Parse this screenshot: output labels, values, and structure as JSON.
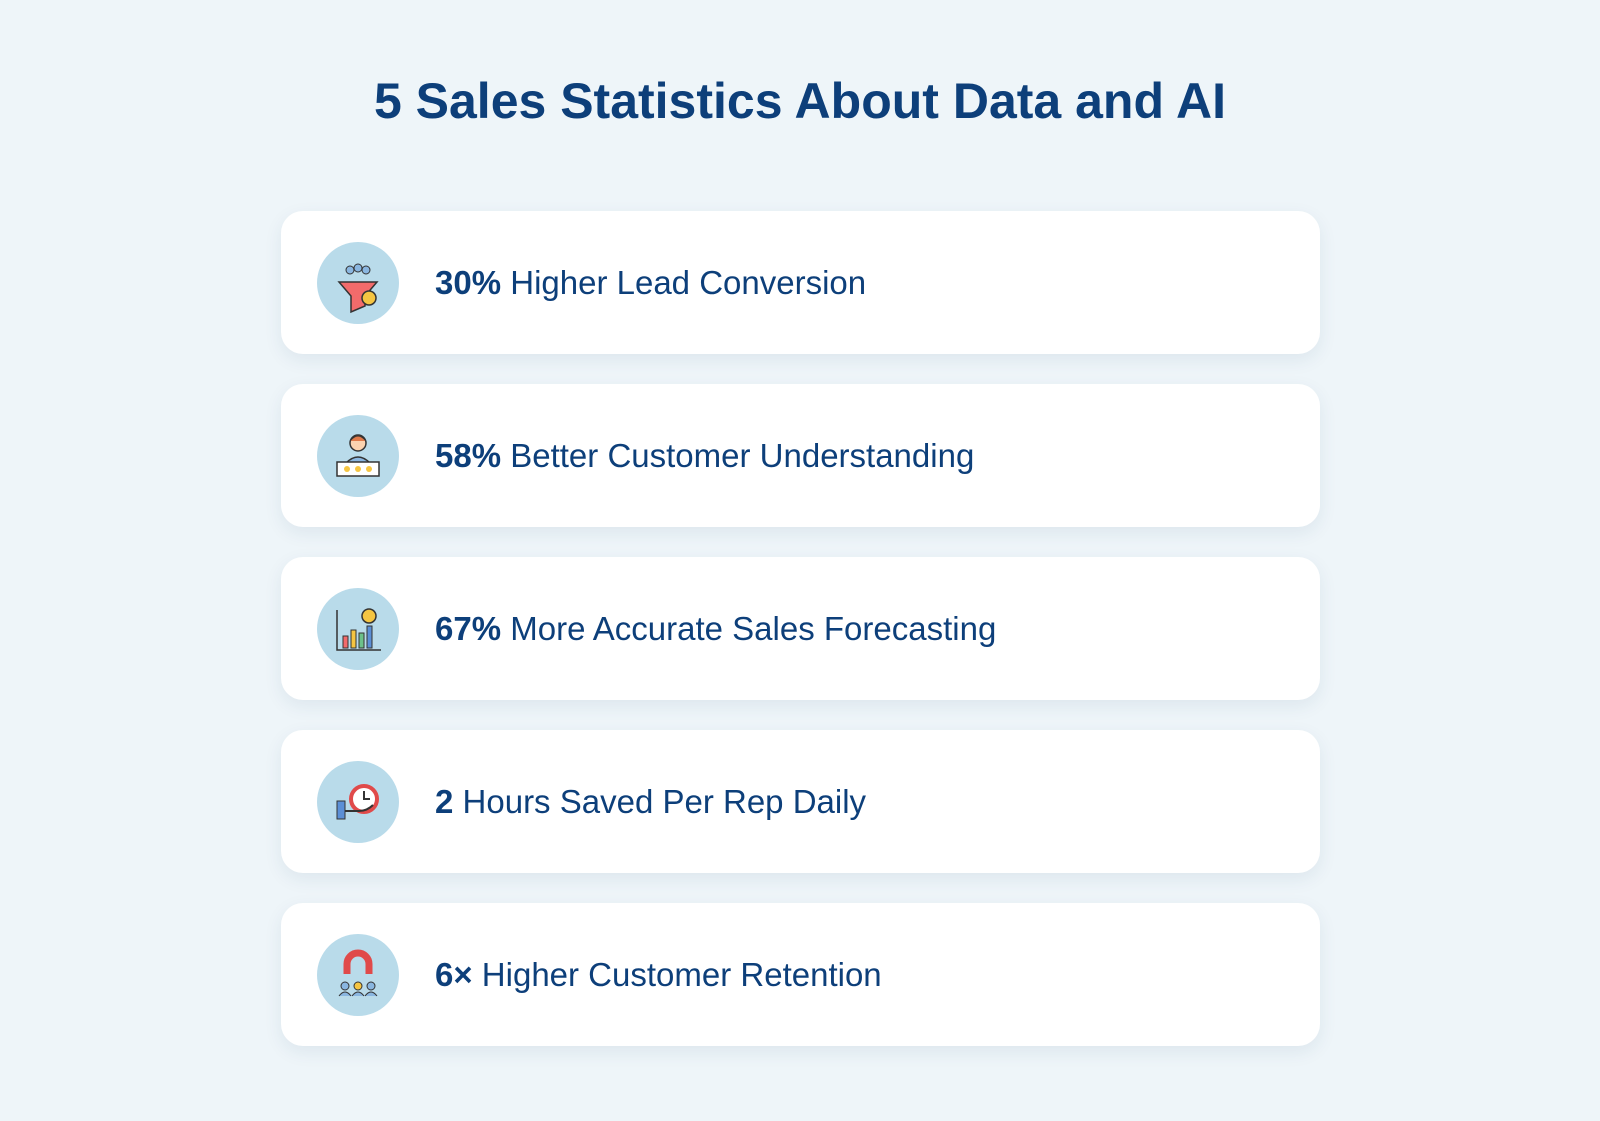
{
  "title": "5 Sales Statistics About Data and AI",
  "stats": [
    {
      "value": "30%",
      "label": "Higher Lead Conversion"
    },
    {
      "value": "58%",
      "label": "Better Customer Understanding"
    },
    {
      "value": "67%",
      "label": "More Accurate Sales Forecasting"
    },
    {
      "value": "2",
      "label": "Hours Saved Per Rep Daily"
    },
    {
      "value": "6×",
      "label": "Higher Customer Retention"
    }
  ]
}
